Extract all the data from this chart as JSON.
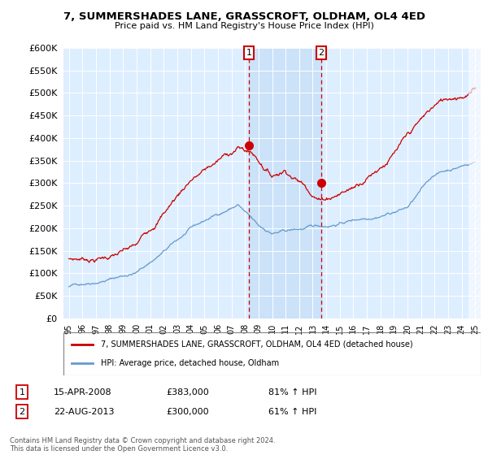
{
  "title": "7, SUMMERSHADES LANE, GRASSCROFT, OLDHAM, OL4 4ED",
  "subtitle": "Price paid vs. HM Land Registry's House Price Index (HPI)",
  "legend_line1": "7, SUMMERSHADES LANE, GRASSCROFT, OLDHAM, OL4 4ED (detached house)",
  "legend_line2": "HPI: Average price, detached house, Oldham",
  "annotation1_date": "15-APR-2008",
  "annotation1_price": "£383,000",
  "annotation1_hpi": "81% ↑ HPI",
  "annotation2_date": "22-AUG-2013",
  "annotation2_price": "£300,000",
  "annotation2_hpi": "61% ↑ HPI",
  "copyright": "Contains HM Land Registry data © Crown copyright and database right 2024.\nThis data is licensed under the Open Government Licence v3.0.",
  "hpi_color": "#6699cc",
  "price_color": "#cc0000",
  "annotation_box_color": "#cc0000",
  "background_color": "#ddeeff",
  "shade_color": "#cce0ff",
  "vline_color": "#cc0000",
  "grid_color": "#ffffff",
  "ylim": [
    0,
    600000
  ],
  "yticks": [
    0,
    50000,
    100000,
    150000,
    200000,
    250000,
    300000,
    350000,
    400000,
    450000,
    500000,
    550000,
    600000
  ],
  "sale1_year": 2008.29,
  "sale1_price": 383000,
  "sale2_year": 2013.63,
  "sale2_price": 300000,
  "xstart": 1995,
  "xend": 2025
}
